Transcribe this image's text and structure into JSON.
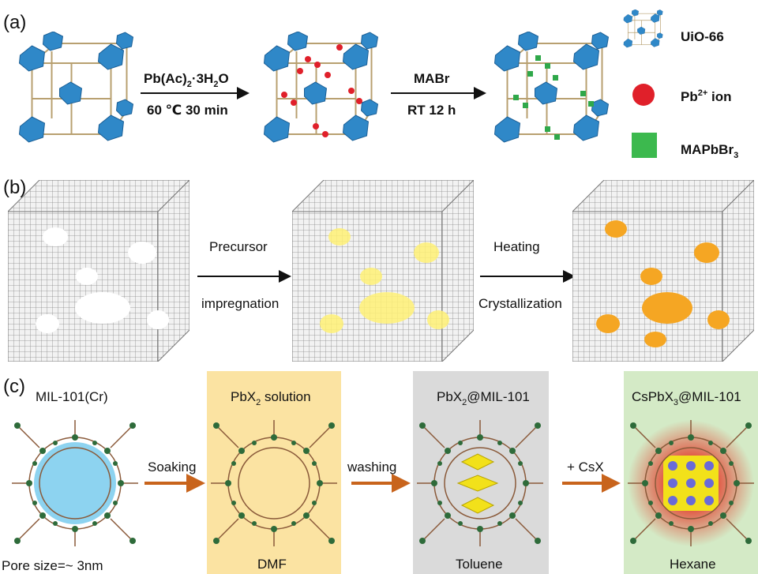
{
  "panels": {
    "a": {
      "label": "(a)",
      "step1": {
        "reagent": [
          "Pb(Ac)",
          "2",
          "·3H",
          "2",
          "O"
        ],
        "condition": "60 ℃ 30 min"
      },
      "step2": {
        "reagent": "MABr",
        "condition": "RT 12 h"
      },
      "legend": [
        {
          "text": [
            "UiO-66"
          ]
        },
        {
          "text": [
            "Pb",
            "2+",
            " ion"
          ]
        },
        {
          "text": [
            "MAPbBr",
            "3"
          ]
        }
      ]
    },
    "b": {
      "label": "(b)",
      "step1": {
        "top": "Precursor",
        "bottom": "impregnation"
      },
      "step2": {
        "top": "Heating",
        "bottom": "Crystallization"
      }
    },
    "c": {
      "label": "(c)",
      "stages": [
        {
          "title": [
            "MIL-101(Cr)"
          ],
          "footer": "Pore size=~ 3nm"
        },
        {
          "title": [
            "PbX",
            "2",
            " solution"
          ],
          "footer": "DMF"
        },
        {
          "title": [
            "PbX",
            "2",
            "@MIL-101"
          ],
          "footer": "Toluene"
        },
        {
          "title": [
            "CsPbX",
            "3",
            "@MIL-101"
          ],
          "footer": "Hexane"
        }
      ],
      "arrows": [
        "Soaking",
        "washing",
        "+ CsX"
      ]
    }
  }
}
